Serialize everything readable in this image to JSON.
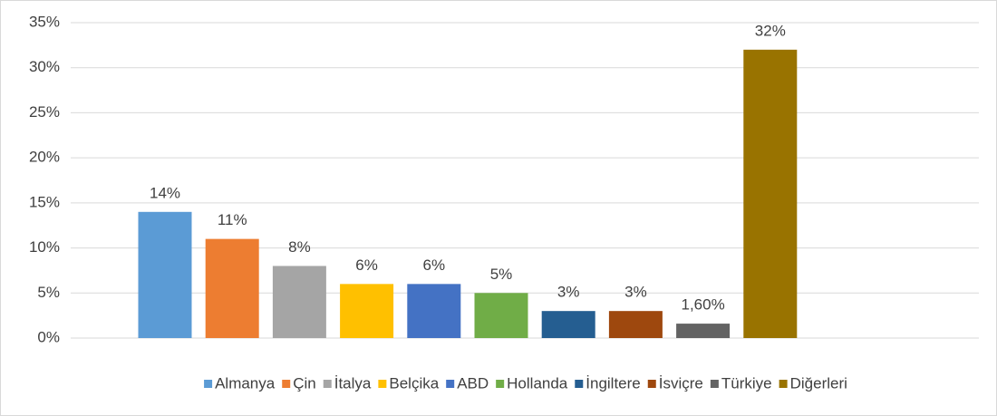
{
  "chart_data": {
    "type": "bar",
    "categories": [
      "Almanya",
      "Çin",
      "İtalya",
      "Belçika",
      "ABD",
      "Hollanda",
      "İngiltere",
      "İsviçre",
      "Türkiye",
      "Diğerleri"
    ],
    "values": [
      14,
      11,
      8,
      6,
      6,
      5,
      3,
      3,
      1.6,
      32
    ],
    "value_labels": [
      "14%",
      "11%",
      "8%",
      "6%",
      "6%",
      "5%",
      "3%",
      "3%",
      "1,60%",
      "32%"
    ],
    "colors": [
      "#5b9bd5",
      "#ed7d31",
      "#a5a5a5",
      "#ffc000",
      "#4472c4",
      "#70ad47",
      "#255e91",
      "#9e480e",
      "#636363",
      "#997300"
    ],
    "ylim": [
      0,
      35
    ],
    "yticks": [
      {
        "value": 0,
        "label": "0%"
      },
      {
        "value": 5,
        "label": "5%"
      },
      {
        "value": 10,
        "label": "10%"
      },
      {
        "value": 15,
        "label": "15%"
      },
      {
        "value": 20,
        "label": "20%"
      },
      {
        "value": 25,
        "label": "25%"
      },
      {
        "value": 30,
        "label": "30%"
      },
      {
        "value": 35,
        "label": "35%"
      }
    ],
    "grid": true,
    "legend": "bottom"
  }
}
